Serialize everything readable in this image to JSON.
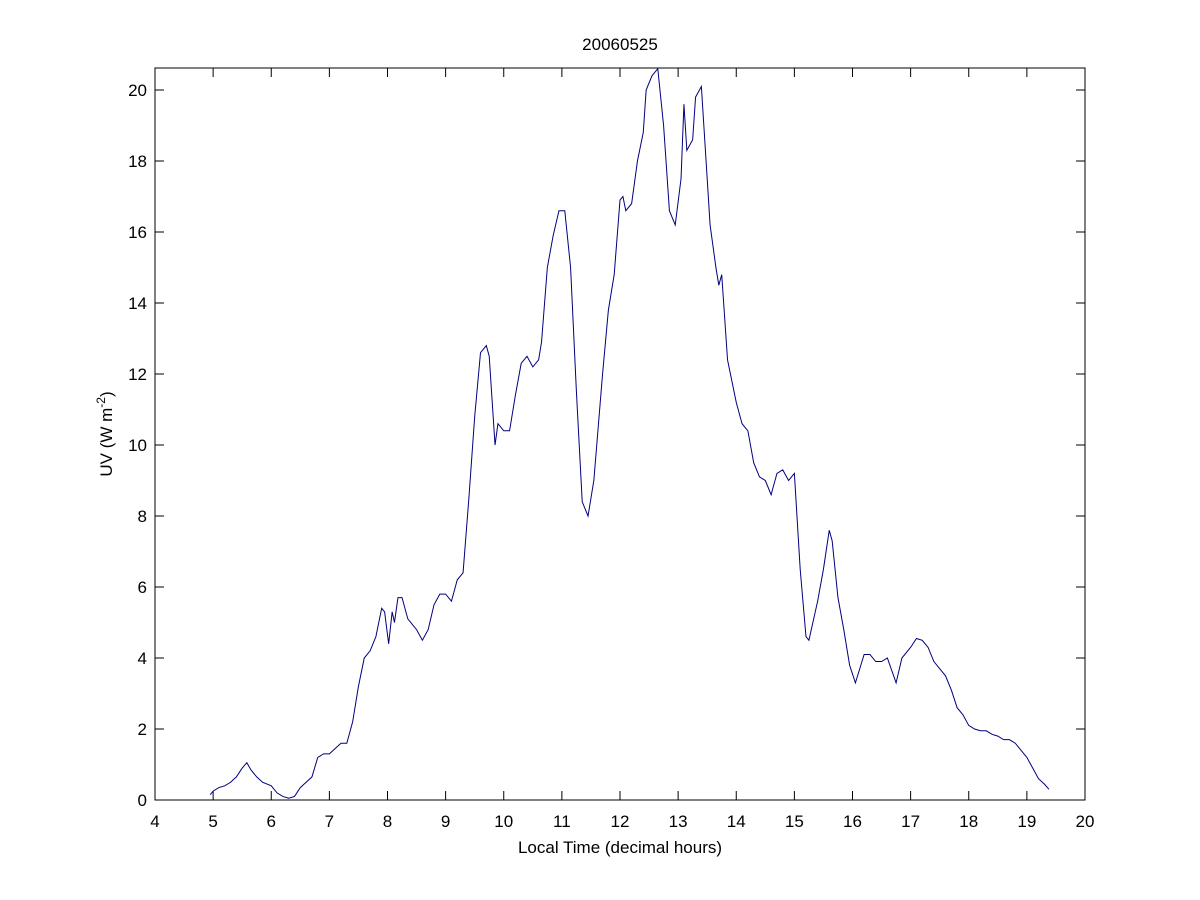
{
  "chart_data": {
    "type": "line",
    "title": "20060525",
    "xlabel": "Local Time (decimal hours)",
    "ylabel": {
      "base": "UV (W m",
      "sup": "-2",
      "end": ")"
    },
    "xlim": [
      4,
      20
    ],
    "ylim": [
      0,
      20.62
    ],
    "xticks": [
      4,
      5,
      6,
      7,
      8,
      9,
      10,
      11,
      12,
      13,
      14,
      15,
      16,
      17,
      18,
      19,
      20
    ],
    "yticks": [
      0,
      2,
      4,
      6,
      8,
      10,
      12,
      14,
      16,
      18,
      20
    ],
    "grid": false,
    "box": true,
    "series": [
      {
        "color": "#00007f",
        "x": [
          4.95,
          5.0,
          5.1,
          5.2,
          5.3,
          5.4,
          5.5,
          5.58,
          5.65,
          5.75,
          5.85,
          6.0,
          6.1,
          6.2,
          6.3,
          6.4,
          6.5,
          6.6,
          6.7,
          6.8,
          6.9,
          7.0,
          7.1,
          7.2,
          7.3,
          7.4,
          7.5,
          7.6,
          7.7,
          7.8,
          7.9,
          7.95,
          8.02,
          8.08,
          8.12,
          8.18,
          8.25,
          8.35,
          8.5,
          8.6,
          8.7,
          8.8,
          8.9,
          9.0,
          9.1,
          9.2,
          9.3,
          9.4,
          9.5,
          9.6,
          9.7,
          9.75,
          9.85,
          9.9,
          10.0,
          10.1,
          10.2,
          10.3,
          10.4,
          10.5,
          10.6,
          10.65,
          10.75,
          10.85,
          10.95,
          11.05,
          11.15,
          11.25,
          11.35,
          11.45,
          11.55,
          11.7,
          11.8,
          11.9,
          12.0,
          12.05,
          12.1,
          12.2,
          12.3,
          12.4,
          12.45,
          12.55,
          12.65,
          12.75,
          12.85,
          12.95,
          13.05,
          13.1,
          13.15,
          13.25,
          13.3,
          13.4,
          13.5,
          13.55,
          13.65,
          13.7,
          13.75,
          13.85,
          14.0,
          14.1,
          14.2,
          14.3,
          14.4,
          14.5,
          14.6,
          14.7,
          14.8,
          14.9,
          15.0,
          15.1,
          15.2,
          15.25,
          15.4,
          15.5,
          15.6,
          15.65,
          15.75,
          15.85,
          15.95,
          16.05,
          16.2,
          16.3,
          16.4,
          16.5,
          16.6,
          16.75,
          16.85,
          17.0,
          17.1,
          17.2,
          17.3,
          17.4,
          17.5,
          17.6,
          17.7,
          17.8,
          17.9,
          18.0,
          18.1,
          18.2,
          18.3,
          18.4,
          18.5,
          18.6,
          18.7,
          18.8,
          18.9,
          19.0,
          19.1,
          19.2,
          19.3,
          19.38
        ],
        "values": [
          0.15,
          0.25,
          0.35,
          0.4,
          0.5,
          0.65,
          0.9,
          1.05,
          0.85,
          0.65,
          0.5,
          0.4,
          0.2,
          0.1,
          0.05,
          0.1,
          0.35,
          0.5,
          0.65,
          1.2,
          1.3,
          1.3,
          1.45,
          1.6,
          1.6,
          2.2,
          3.2,
          4.0,
          4.2,
          4.6,
          5.4,
          5.3,
          4.4,
          5.3,
          5.0,
          5.7,
          5.7,
          5.1,
          4.8,
          4.5,
          4.8,
          5.5,
          5.8,
          5.8,
          5.6,
          6.2,
          6.4,
          8.5,
          10.8,
          12.6,
          12.8,
          12.5,
          10.0,
          10.6,
          10.4,
          10.4,
          11.4,
          12.3,
          12.5,
          12.2,
          12.4,
          12.9,
          15.0,
          15.9,
          16.6,
          16.6,
          15.0,
          11.5,
          8.4,
          8.0,
          9.0,
          12.0,
          13.8,
          14.8,
          16.9,
          17.0,
          16.6,
          16.8,
          18.0,
          18.8,
          20.0,
          20.4,
          20.6,
          19.0,
          16.6,
          16.2,
          17.5,
          19.6,
          18.3,
          18.6,
          19.8,
          20.1,
          17.5,
          16.2,
          15.0,
          14.5,
          14.8,
          12.4,
          11.2,
          10.6,
          10.4,
          9.5,
          9.1,
          9.0,
          8.6,
          9.2,
          9.3,
          9.0,
          9.2,
          6.5,
          4.6,
          4.5,
          5.6,
          6.5,
          7.6,
          7.3,
          5.7,
          4.8,
          3.8,
          3.3,
          4.1,
          4.1,
          3.9,
          3.9,
          4.0,
          3.3,
          4.0,
          4.3,
          4.55,
          4.5,
          4.3,
          3.9,
          3.7,
          3.5,
          3.1,
          2.6,
          2.4,
          2.1,
          2.0,
          1.95,
          1.95,
          1.85,
          1.8,
          1.7,
          1.7,
          1.6,
          1.4,
          1.2,
          0.9,
          0.6,
          0.45,
          0.3
        ]
      }
    ]
  }
}
